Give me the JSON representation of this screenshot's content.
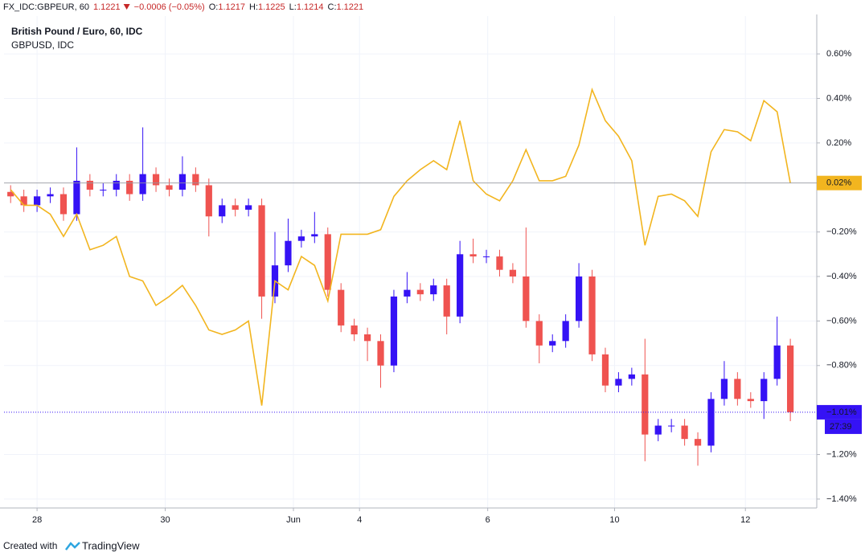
{
  "header": {
    "symbol": "FX_IDC:GBPEUR, 60",
    "price": "1.1221",
    "change": "−0.0006 (−0.05%)",
    "open_label": "O:",
    "open": "1.1217",
    "high_label": "H:",
    "high": "1.1225",
    "low_label": "L:",
    "low": "1.1214",
    "close_label": "C:",
    "close": "1.1221"
  },
  "footer": {
    "created": "Created with",
    "brand": "TradingView"
  },
  "chart_data": {
    "type": "candlestick",
    "x": [
      0,
      1,
      2,
      3,
      4,
      5,
      6,
      7,
      8,
      9,
      10,
      11,
      12,
      13,
      14,
      15,
      16,
      17,
      18,
      19,
      20,
      21,
      22,
      23,
      24,
      25,
      26,
      27,
      28,
      29,
      30,
      31,
      32,
      33,
      34,
      35,
      36,
      37,
      38,
      39,
      40,
      41,
      42,
      43,
      44,
      45,
      46,
      47,
      48,
      49,
      50,
      51,
      52,
      53,
      54,
      55,
      56,
      57,
      58,
      59
    ],
    "xlim": [
      -0.5,
      61
    ],
    "xticks": [
      {
        "value": 2.0,
        "label": "28"
      },
      {
        "value": 11.7,
        "label": "30"
      },
      {
        "value": 21.4,
        "label": "Jun"
      },
      {
        "value": 26.4,
        "label": "4"
      },
      {
        "value": 36.1,
        "label": "6"
      },
      {
        "value": 45.7,
        "label": "10"
      },
      {
        "value": 55.6,
        "label": "12"
      }
    ],
    "ylim": [
      -1.44,
      0.77
    ],
    "yticks": [
      {
        "value": 0.6,
        "label": "0.60%"
      },
      {
        "value": 0.4,
        "label": "0.40%"
      },
      {
        "value": 0.2,
        "label": "0.20%"
      },
      {
        "value": -0.2,
        "label": "−0.20%"
      },
      {
        "value": -0.4,
        "label": "−0.40%"
      },
      {
        "value": -0.6,
        "label": "−0.60%"
      },
      {
        "value": -0.8,
        "label": "−0.80%"
      },
      {
        "value": -1.2,
        "label": "−1.20%"
      },
      {
        "value": -1.4,
        "label": "−1.40%"
      }
    ],
    "grid": true,
    "countdown": "27:39",
    "series": [
      {
        "name": "British Pound / Euro, 60, IDC",
        "up_color": "#3512f5",
        "down_color": "#ef5350",
        "last_color": "#3512f5",
        "open": [
          -0.02,
          -0.04,
          -0.08,
          -0.04,
          -0.03,
          -0.12,
          0.03,
          -0.01,
          -0.01,
          0.03,
          -0.03,
          0.06,
          0.01,
          -0.01,
          0.06,
          0.01,
          -0.13,
          -0.08,
          -0.1,
          -0.08,
          -0.49,
          -0.35,
          -0.24,
          -0.22,
          -0.21,
          -0.46,
          -0.62,
          -0.66,
          -0.69,
          -0.8,
          -0.49,
          -0.46,
          -0.48,
          -0.44,
          -0.58,
          -0.3,
          -0.31,
          -0.31,
          -0.37,
          -0.4,
          -0.6,
          -0.71,
          -0.69,
          -0.6,
          -0.4,
          -0.75,
          -0.89,
          -0.86,
          -0.84,
          -1.11,
          -1.07,
          -1.07,
          -1.13,
          -1.16,
          -0.95,
          -0.86,
          -0.95,
          -0.96,
          -0.86,
          -0.71
        ],
        "high": [
          0.01,
          -0.01,
          -0.01,
          0.0,
          0.0,
          0.18,
          0.06,
          0.02,
          0.06,
          0.06,
          0.27,
          0.09,
          0.04,
          0.14,
          0.09,
          0.04,
          -0.05,
          -0.05,
          -0.05,
          -0.05,
          -0.2,
          -0.14,
          -0.19,
          -0.11,
          -0.18,
          -0.43,
          -0.59,
          -0.63,
          -0.66,
          -0.46,
          -0.38,
          -0.43,
          -0.41,
          -0.41,
          -0.24,
          -0.23,
          -0.28,
          -0.28,
          -0.34,
          -0.18,
          -0.57,
          -0.66,
          -0.57,
          -0.34,
          -0.37,
          -0.72,
          -0.83,
          -0.81,
          -0.68,
          -1.04,
          -1.04,
          -1.04,
          -1.1,
          -0.92,
          -0.78,
          -0.83,
          -0.92,
          -0.83,
          -0.58,
          -0.68
        ],
        "low": [
          -0.07,
          -0.11,
          -0.11,
          -0.07,
          -0.15,
          -0.15,
          -0.04,
          -0.04,
          -0.04,
          -0.06,
          -0.06,
          -0.02,
          -0.04,
          -0.04,
          -0.02,
          -0.22,
          -0.16,
          -0.13,
          -0.13,
          -0.59,
          -0.52,
          -0.38,
          -0.27,
          -0.25,
          -0.49,
          -0.65,
          -0.69,
          -0.78,
          -0.9,
          -0.83,
          -0.52,
          -0.51,
          -0.51,
          -0.66,
          -0.61,
          -0.34,
          -0.34,
          -0.4,
          -0.43,
          -0.63,
          -0.79,
          -0.74,
          -0.72,
          -0.63,
          -0.78,
          -0.92,
          -0.92,
          -0.89,
          -1.23,
          -1.14,
          -1.1,
          -1.16,
          -1.25,
          -1.19,
          -0.98,
          -0.98,
          -0.99,
          -1.04,
          -0.89,
          -1.05
        ],
        "close": [
          -0.04,
          -0.08,
          -0.04,
          -0.03,
          -0.12,
          0.03,
          -0.01,
          -0.01,
          0.03,
          -0.03,
          0.06,
          0.01,
          -0.01,
          0.06,
          0.01,
          -0.13,
          -0.08,
          -0.1,
          -0.08,
          -0.49,
          -0.35,
          -0.24,
          -0.22,
          -0.21,
          -0.46,
          -0.62,
          -0.66,
          -0.69,
          -0.8,
          -0.49,
          -0.46,
          -0.48,
          -0.44,
          -0.58,
          -0.3,
          -0.31,
          -0.31,
          -0.37,
          -0.4,
          -0.6,
          -0.71,
          -0.69,
          -0.6,
          -0.4,
          -0.75,
          -0.89,
          -0.86,
          -0.84,
          -1.11,
          -1.07,
          -1.07,
          -1.13,
          -1.16,
          -0.95,
          -0.86,
          -0.95,
          -0.96,
          -0.86,
          -0.71,
          -1.01
        ],
        "last_label": "−1.01%"
      },
      {
        "name": "GBPUSD, IDC",
        "color": "#f2b51f",
        "values": [
          -0.01,
          -0.08,
          -0.08,
          -0.12,
          -0.22,
          -0.12,
          -0.28,
          -0.26,
          -0.22,
          -0.4,
          -0.42,
          -0.53,
          -0.49,
          -0.44,
          -0.53,
          -0.64,
          -0.66,
          -0.64,
          -0.6,
          -0.98,
          -0.42,
          -0.46,
          -0.31,
          -0.35,
          -0.51,
          -0.21,
          -0.21,
          -0.21,
          -0.19,
          -0.04,
          0.03,
          0.08,
          0.12,
          0.08,
          0.3,
          0.03,
          -0.03,
          -0.06,
          0.03,
          0.17,
          0.03,
          0.03,
          0.05,
          0.19,
          0.44,
          0.3,
          0.23,
          0.12,
          -0.26,
          -0.04,
          -0.03,
          -0.06,
          -0.13,
          0.16,
          0.26,
          0.25,
          0.21,
          0.39,
          0.34,
          0.02
        ],
        "last_label": "0.02%"
      }
    ]
  }
}
